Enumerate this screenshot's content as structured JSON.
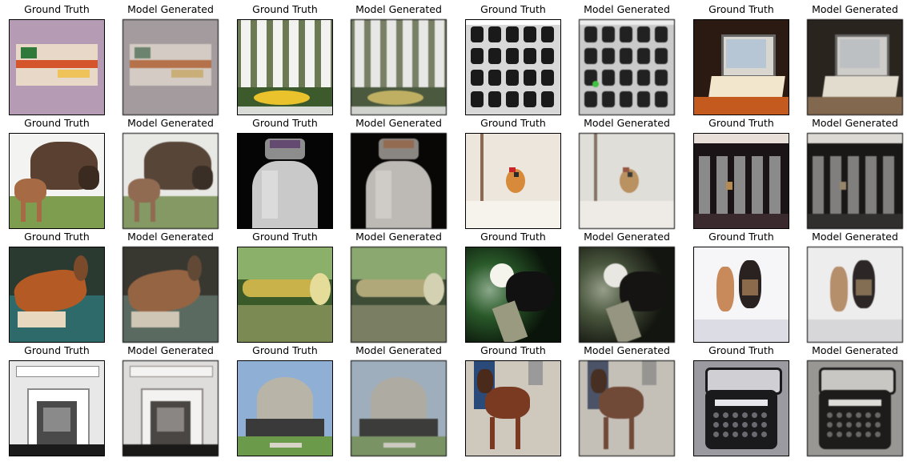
{
  "rows": [
    [
      {
        "caption": "Ground Truth",
        "kind": "truth",
        "scene": "colorful-tin-box",
        "colors": [
          "#b59bb3",
          "#e8d8c8",
          "#d4552b",
          "#2f7a3a",
          "#f0c35a"
        ]
      },
      {
        "caption": "Model Generated",
        "kind": "generated",
        "scene": "colorful-tin-box",
        "colors": [
          "#a9a0a3",
          "#ddd2c8",
          "#c9723f",
          "#6a8a6e",
          "#d6b26e"
        ]
      },
      {
        "caption": "Ground Truth",
        "kind": "truth",
        "scene": "white-picket-fence",
        "colors": [
          "#f2f2f0",
          "#6b7a52",
          "#e9c22c",
          "#3c5a2c",
          "#d9dcd6"
        ]
      },
      {
        "caption": "Model Generated",
        "kind": "generated",
        "scene": "white-picket-fence",
        "colors": [
          "#eeeeec",
          "#7a8461",
          "#c9b552",
          "#4a5d3b",
          "#d6d8d2"
        ]
      },
      {
        "caption": "Ground Truth",
        "kind": "truth",
        "scene": "camera-gear-grid",
        "colors": [
          "#d8d8d8",
          "#1a1a1a",
          "#7d7d7d",
          "#ffffff",
          "#3a3a3a"
        ]
      },
      {
        "caption": "Model Generated",
        "kind": "generated",
        "scene": "camera-gear-grid",
        "colors": [
          "#d0d0d0",
          "#222222",
          "#808080",
          "#f4f4f4",
          "#2bd12b"
        ]
      },
      {
        "caption": "Ground Truth",
        "kind": "truth",
        "scene": "laptop-on-desk",
        "colors": [
          "#2a1a12",
          "#b7c6d4",
          "#d9d5cf",
          "#c45a1e",
          "#f2e6cc"
        ]
      },
      {
        "caption": "Model Generated",
        "kind": "generated",
        "scene": "laptop-on-desk",
        "colors": [
          "#2c251f",
          "#c1c6ca",
          "#d6d3ce",
          "#8a6a4a",
          "#ebe3d2"
        ]
      }
    ],
    [
      {
        "caption": "Ground Truth",
        "kind": "truth",
        "scene": "bison-and-calf",
        "colors": [
          "#f3f3f1",
          "#5a4030",
          "#7e9d4f",
          "#a66b45",
          "#3b2a20"
        ]
      },
      {
        "caption": "Model Generated",
        "kind": "generated",
        "scene": "bison-and-calf",
        "colors": [
          "#efefeb",
          "#5e4636",
          "#85a05c",
          "#9c6c4c",
          "#3f3026"
        ]
      },
      {
        "caption": "Ground Truth",
        "kind": "truth",
        "scene": "water-bottle",
        "colors": [
          "#050505",
          "#c9c9c9",
          "#8d8d8d",
          "#5a3a6a",
          "#e8e8e8"
        ]
      },
      {
        "caption": "Model Generated",
        "kind": "generated",
        "scene": "water-bottle",
        "colors": [
          "#080706",
          "#c4c0bb",
          "#8f8a85",
          "#a5643a",
          "#e2ded8"
        ]
      },
      {
        "caption": "Ground Truth",
        "kind": "truth",
        "scene": "bird-in-snow",
        "colors": [
          "#ece6dd",
          "#8a6a55",
          "#d68a3a",
          "#c8242a",
          "#2a2a2a"
        ]
      },
      {
        "caption": "Model Generated",
        "kind": "generated",
        "scene": "bird-in-snow",
        "colors": [
          "#e8e5df",
          "#8c7563",
          "#c99556",
          "#a8573f",
          "#3a3a3a"
        ]
      },
      {
        "caption": "Ground Truth",
        "kind": "truth",
        "scene": "subway-turnstiles",
        "colors": [
          "#1a1416",
          "#8a8a8a",
          "#3a2a2e",
          "#e8e0d8",
          "#b58a52"
        ]
      },
      {
        "caption": "Model Generated",
        "kind": "generated",
        "scene": "subway-turnstiles",
        "colors": [
          "#1a1918",
          "#868380",
          "#33302d",
          "#e4e0da",
          "#a08a66"
        ]
      }
    ],
    [
      {
        "caption": "Ground Truth",
        "kind": "truth",
        "scene": "deer-on-blanket",
        "colors": [
          "#2a3a30",
          "#b45a25",
          "#2f6a6a",
          "#e8d8c0",
          "#7a4a2a"
        ]
      },
      {
        "caption": "Model Generated",
        "kind": "generated",
        "scene": "deer-on-blanket",
        "colors": [
          "#3a3a32",
          "#a5653a",
          "#5a6e62",
          "#d8ccb8",
          "#6a4a32"
        ]
      },
      {
        "caption": "Ground Truth",
        "kind": "truth",
        "scene": "brass-instrument",
        "colors": [
          "#3a5a2a",
          "#c9b24a",
          "#7a8a52",
          "#2a3a22",
          "#e6dc9a"
        ]
      },
      {
        "caption": "Model Generated",
        "kind": "generated",
        "scene": "brass-instrument",
        "colors": [
          "#3e5032",
          "#b8ad72",
          "#7d8460",
          "#2e362a",
          "#ddd6b0"
        ]
      },
      {
        "caption": "Ground Truth",
        "kind": "truth",
        "scene": "white-faced-monkey",
        "colors": [
          "#0a140a",
          "#f4f4ec",
          "#2a5a2a",
          "#8aa88a",
          "#111111"
        ]
      },
      {
        "caption": "Model Generated",
        "kind": "generated",
        "scene": "white-faced-monkey",
        "colors": [
          "#14160f",
          "#efeee6",
          "#4a5a3a",
          "#9aa48a",
          "#161514"
        ]
      },
      {
        "caption": "Ground Truth",
        "kind": "truth",
        "scene": "dogs-in-snow",
        "colors": [
          "#f6f6f8",
          "#c88a5a",
          "#2a2220",
          "#dcdce4",
          "#8a6a4a"
        ]
      },
      {
        "caption": "Model Generated",
        "kind": "generated",
        "scene": "dogs-in-snow",
        "colors": [
          "#f4f4f4",
          "#c49063",
          "#2e2826",
          "#dedee2",
          "#8c7050"
        ]
      }
    ],
    [
      {
        "caption": "Ground Truth",
        "kind": "truth",
        "scene": "fireplace-bw",
        "colors": [
          "#e8e8e8",
          "#1a1a1a",
          "#8a8a8a",
          "#ffffff",
          "#4a4a4a"
        ]
      },
      {
        "caption": "Model Generated",
        "kind": "generated",
        "scene": "fireplace-bw",
        "colors": [
          "#e6e4e2",
          "#1c1a18",
          "#8e8a86",
          "#fbf9f6",
          "#4c4844"
        ]
      },
      {
        "caption": "Ground Truth",
        "kind": "truth",
        "scene": "dome-building",
        "colors": [
          "#8fb0d4",
          "#b8b4a8",
          "#6a9a4a",
          "#3a3a3a",
          "#d8d4c8"
        ]
      },
      {
        "caption": "Model Generated",
        "kind": "generated",
        "scene": "dome-building",
        "colors": [
          "#9fb4c8",
          "#b4b0a6",
          "#7a9a5e",
          "#3e3e3c",
          "#d4d0c6"
        ]
      },
      {
        "caption": "Ground Truth",
        "kind": "truth",
        "scene": "brown-dog",
        "colors": [
          "#cfc8bc",
          "#7a3a22",
          "#2a4a7a",
          "#9a9a9a",
          "#4a2a1a"
        ]
      },
      {
        "caption": "Model Generated",
        "kind": "generated",
        "scene": "brown-dog",
        "colors": [
          "#cbc5bb",
          "#7e4a32",
          "#4a5670",
          "#9c9a96",
          "#4e3020"
        ]
      },
      {
        "caption": "Ground Truth",
        "kind": "truth",
        "scene": "vintage-typewriter",
        "colors": [
          "#9a9aa0",
          "#1a1a1c",
          "#cfcfd4",
          "#6a6a70",
          "#e8e8ec"
        ]
      },
      {
        "caption": "Model Generated",
        "kind": "generated",
        "scene": "vintage-typewriter",
        "colors": [
          "#9e9c98",
          "#1e1d1c",
          "#cfcdc8",
          "#6c6a66",
          "#e6e4e0"
        ]
      }
    ]
  ]
}
